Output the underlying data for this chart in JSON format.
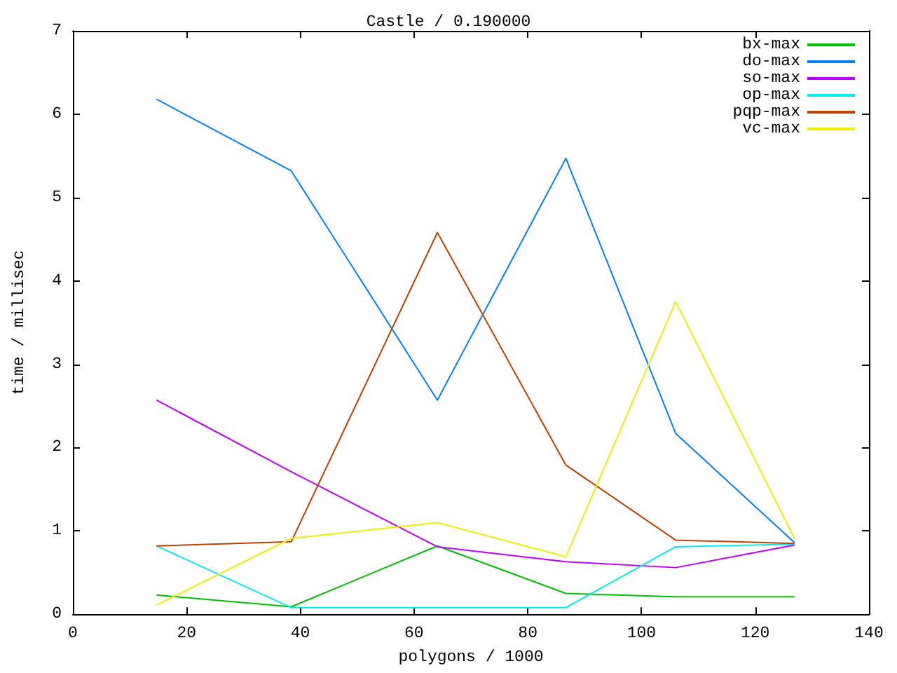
{
  "chart_data": {
    "type": "line",
    "title": "Castle / 0.190000",
    "xlabel": "polygons / 1000",
    "ylabel": "time / millisec",
    "x": [
      14.7,
      38.4,
      64.1,
      86.7,
      106,
      126.9
    ],
    "series": [
      {
        "name": "bx-max",
        "color": "#00c000",
        "values": [
          0.23,
          0.09,
          0.82,
          0.25,
          0.21,
          0.21
        ]
      },
      {
        "name": "do-max",
        "color": "#0080ff",
        "values": [
          6.18,
          5.32,
          2.57,
          5.47,
          2.17,
          0.86
        ]
      },
      {
        "name": "so-max",
        "color": "#c000ff",
        "values": [
          2.57,
          1.71,
          0.81,
          0.63,
          0.56,
          0.83
        ]
      },
      {
        "name": "op-max",
        "color": "#00eeee",
        "values": [
          0.82,
          0.08,
          0.08,
          0.08,
          0.81,
          0.84
        ]
      },
      {
        "name": "pqp-max",
        "color": "#c04000",
        "values": [
          0.82,
          0.87,
          4.58,
          1.79,
          0.89,
          0.85
        ]
      },
      {
        "name": "vc-max",
        "color": "#eeee00",
        "values": [
          0.11,
          0.91,
          1.1,
          0.69,
          3.75,
          0.91
        ]
      }
    ],
    "xlim": [
      0,
      140
    ],
    "xticks": [
      0,
      20,
      40,
      60,
      80,
      100,
      120,
      140
    ],
    "ylim": [
      0,
      7
    ],
    "yticks": [
      0,
      1,
      2,
      3,
      4,
      5,
      6,
      7
    ],
    "grid": false,
    "legend": "top right",
    "marker": "none",
    "line_style": "solid"
  }
}
